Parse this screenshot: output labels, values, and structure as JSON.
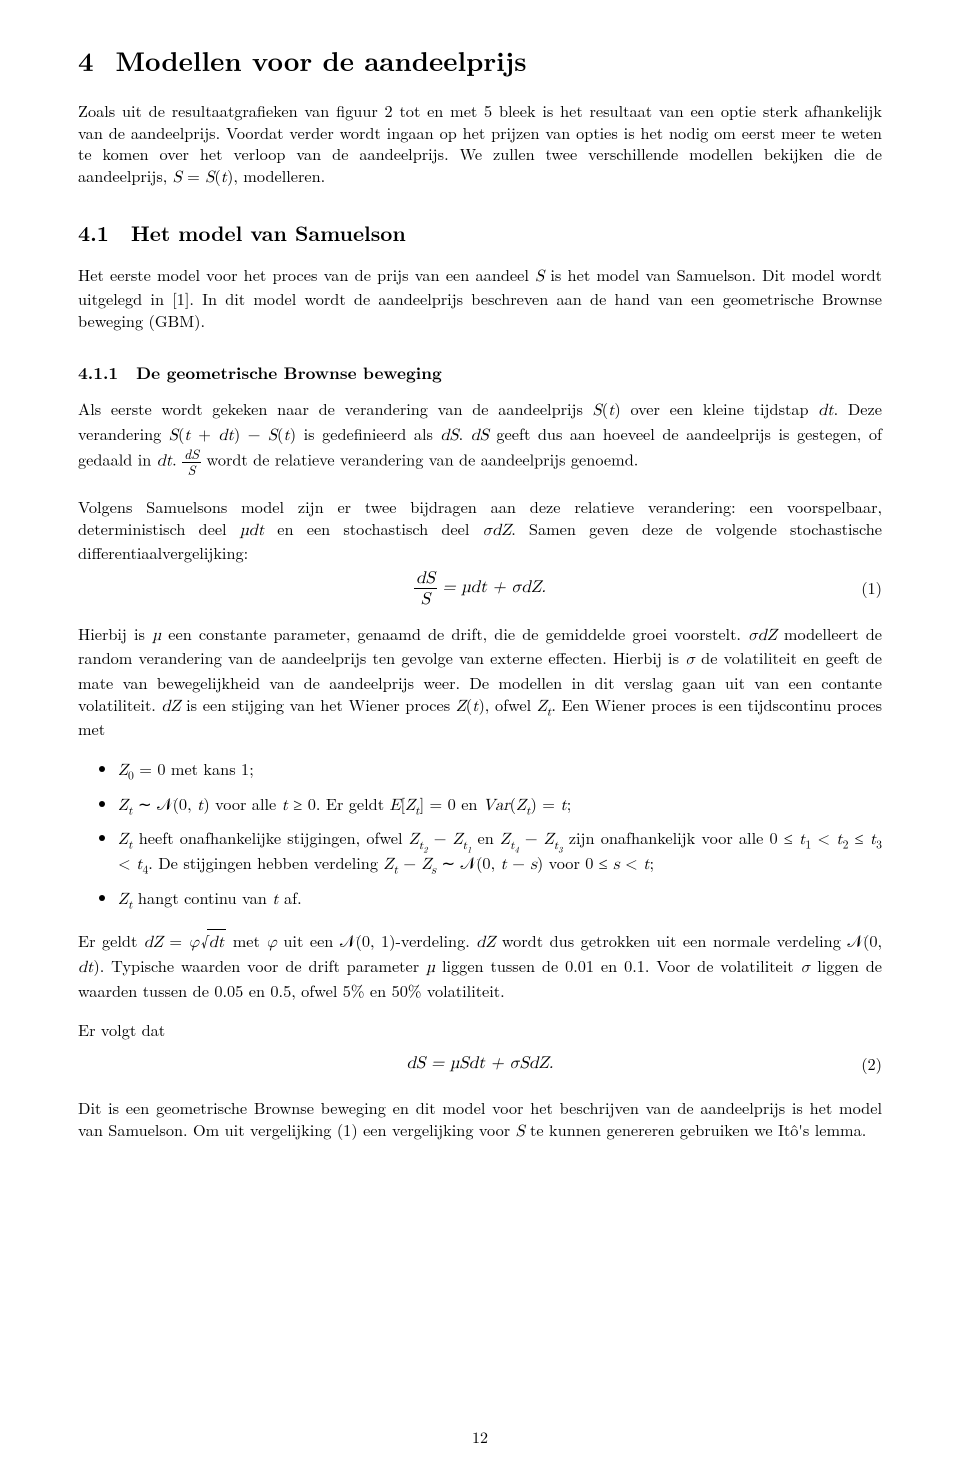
{
  "page_number": "12",
  "section": {
    "number": "4",
    "title": "Modellen voor de aandeelprijs"
  },
  "intro": "Zoals uit de resultaatgrafieken van figuur 2 tot en met 5 bleek is het resultaat van een optie sterk afhankelijk van de aandeelprijs. Voordat verder wordt ingaan op het prijzen van opties is het nodig om eerst meer te weten te komen over het verloop van de aandeelprijs. We zullen twee verschillende modellen bekijken die de aandeelprijs, S = S(t), modelleren.",
  "sub41": {
    "number": "4.1",
    "title": "Het model van Samuelson"
  },
  "p41": "Het eerste model voor het proces van de prijs van een aandeel S is het model van Samuelson. Dit model wordt uitgelegd in [1]. In dit model wordt de aandeelprijs beschreven aan de hand van een geometrische Brownse beweging (GBM).",
  "sub411": {
    "number": "4.1.1",
    "title": "De geometrische Brownse beweging"
  },
  "p411a_pre": "Als eerste wordt gekeken naar de verandering van de aandeelprijs ",
  "p411a_mid1": " over een kleine tijdstap ",
  "p411a_mid2": ". Deze verandering ",
  "p411a_mid3": " is gedefinieerd als ",
  "p411a_mid4": ". ",
  "p411a_mid5": " geeft dus aan hoeveel de aandeelprijs is gestegen, of gedaald in ",
  "p411a_mid6": ". ",
  "p411a_end": " wordt de relatieve verandering van de aandeelprijs genoemd.",
  "p411b_pre": "Volgens Samuelsons model zijn er twee bijdragen aan deze relatieve verandering: een voorspelbaar, deterministisch deel ",
  "p411b_mid1": " en een stochastisch deel ",
  "p411b_mid2": ". Samen geven deze de volgende stochastische differentiaalvergelijking:",
  "eq1": {
    "lhs_num": "dS",
    "lhs_den": "S",
    "rhs": " = µdt + σdZ.",
    "num": "(1)"
  },
  "p411c_pre": "Hierbij is ",
  "p411c_part1": " een constante parameter, genaamd de drift, die de gemiddelde groei voorstelt. ",
  "p411c_part2": " modelleert de random verandering van de aandeelprijs ten gevolge van externe effecten. Hierbij is ",
  "p411c_part3": " de volatiliteit en geeft de mate van bewegelijkheid van de aandeelprijs weer. De modellen in dit verslag gaan uit van een contante volatiliteit. ",
  "p411c_part4": " is een stijging van het Wiener proces ",
  "p411c_part5": ", ofwel ",
  "p411c_part6": ". Een Wiener proces is een tijdscontinu proces met",
  "bullets": {
    "b1_pre": "",
    "b1_body": " met kans 1;",
    "b2_pre": "",
    "b2_mid1": " voor alle ",
    "b2_mid2": ". Er geldt ",
    "b2_mid3": " en ",
    "b2_end": ";",
    "b3_pre": "",
    "b3_body1": " heeft onafhankelijke stijgingen, ofwel ",
    "b3_body2": " en ",
    "b3_body3": " zijn onafhankelijk voor alle ",
    "b3_body4": ". De stijgingen hebben verdeling ",
    "b3_body5": " voor ",
    "b3_end": ";",
    "b4_pre": "",
    "b4_body": " hangt continu van ",
    "b4_end": " af."
  },
  "p411d_pre": "Er geldt ",
  "p411d_mid1": " met ",
  "p411d_mid2": " uit een ",
  "p411d_mid3": "-verdeling. ",
  "p411d_mid4": " wordt dus getrokken uit een normale verdeling ",
  "p411d_mid5": ". Typische waarden voor de drift parameter ",
  "p411d_mid6": " liggen tussen de 0.01 en 0.1. Voor de volatiliteit ",
  "p411d_mid7": " liggen de waarden tussen de 0.05 en 0.5, ofwel 5% en 50% volatiliteit.",
  "p_follow": "Er volgt dat",
  "eq2": {
    "body": "dS = µSdt + σSdZ.",
    "num": "(2)"
  },
  "p_last": "Dit is een geometrische Brownse beweging en dit model voor het beschrijven van de aandeelprijs is het model van Samuelson. Om uit vergelijking (1) een vergelijking voor S te kunnen genereren gebruiken we Itô's lemma."
}
